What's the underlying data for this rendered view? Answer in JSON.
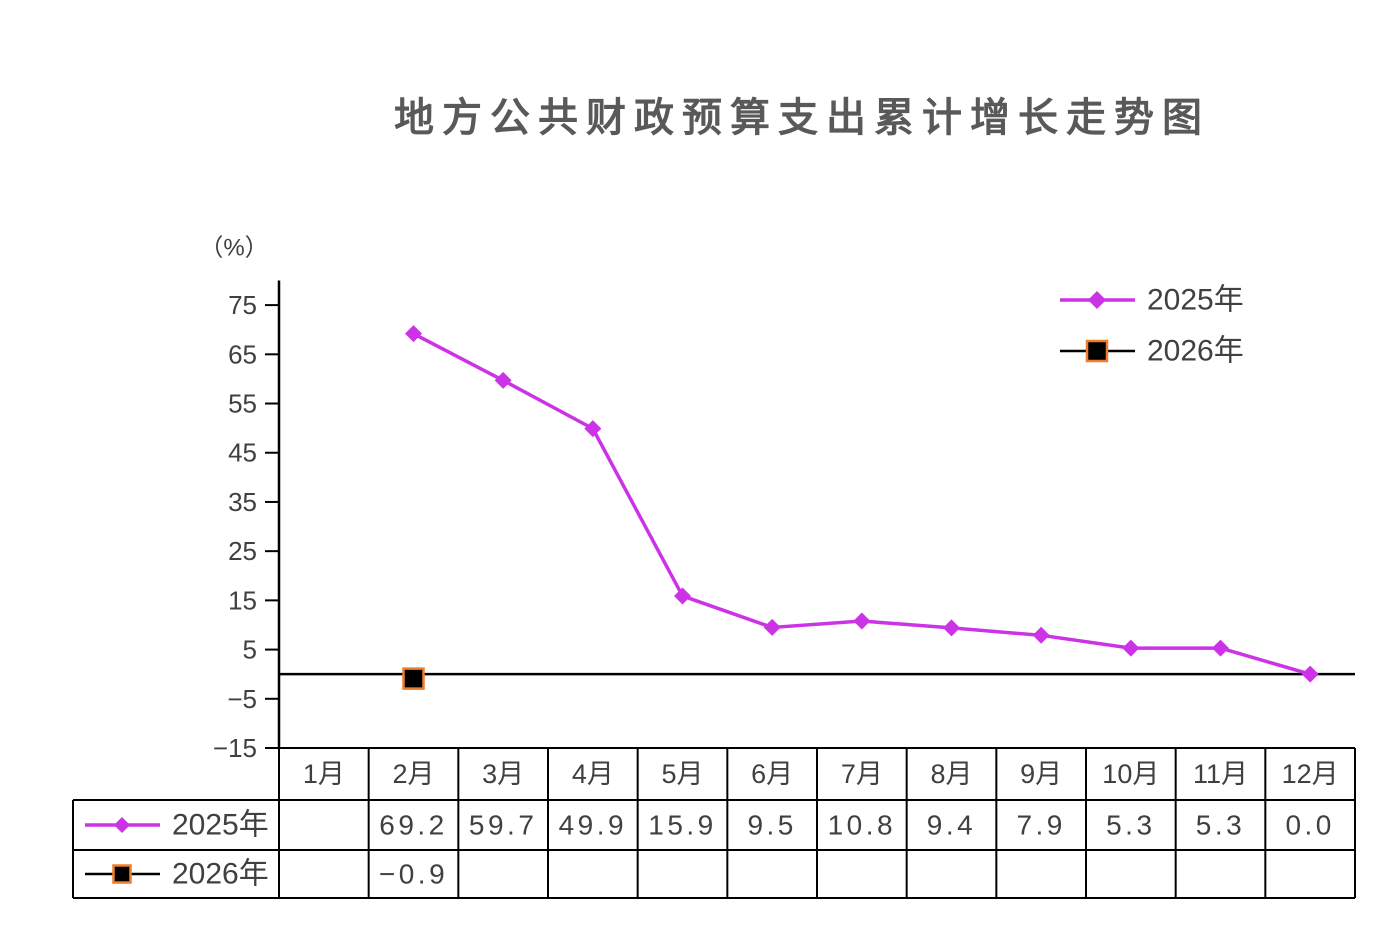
{
  "chart_data": {
    "type": "line",
    "title": "地方公共财政预算支出累计增长走势图",
    "ylabel": "（%）",
    "ylim": [
      -15,
      80
    ],
    "yticks": [
      "75",
      "65",
      "55",
      "45",
      "35",
      "25",
      "15",
      "5",
      "−5",
      "−15"
    ],
    "xaxis_crosses_at": 0,
    "grid": false,
    "legend": "top-right",
    "data_table": true,
    "categories": [
      "1月",
      "2月",
      "3月",
      "4月",
      "5月",
      "6月",
      "7月",
      "8月",
      "9月",
      "10月",
      "11月",
      "12月"
    ],
    "series": [
      {
        "name": "2025年",
        "color": "#CC33E6",
        "marker": "diamond",
        "marker_fill": "#CC33E6",
        "marker_border": "#CC33E6",
        "values": [
          null,
          69.2,
          59.7,
          49.9,
          15.9,
          9.5,
          10.8,
          9.4,
          7.9,
          5.3,
          5.3,
          0.0
        ]
      },
      {
        "name": "2026年",
        "color": "#000000",
        "marker": "square",
        "marker_fill": "#000000",
        "marker_border": "#ED7D31",
        "values": [
          null,
          -0.9,
          null,
          null,
          null,
          null,
          null,
          null,
          null,
          null,
          null,
          null
        ]
      }
    ]
  }
}
